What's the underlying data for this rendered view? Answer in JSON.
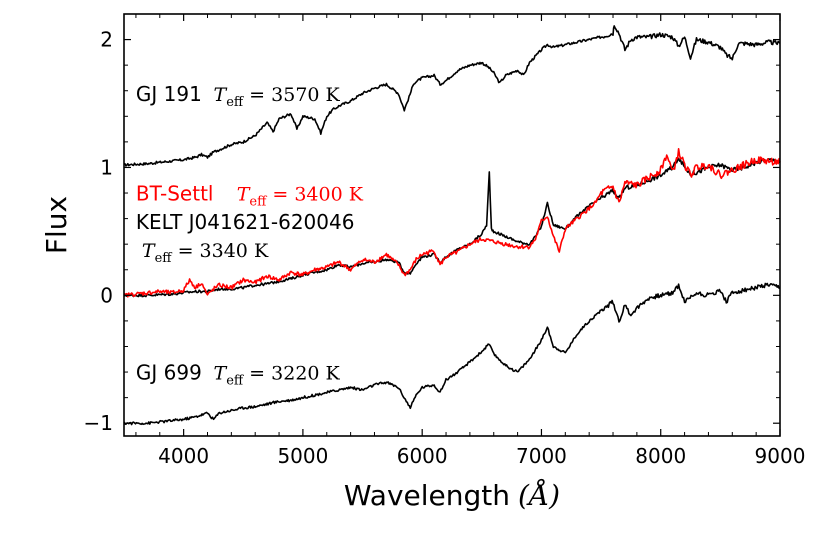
{
  "chart_data": {
    "type": "line",
    "title": "",
    "xlabel": "Wavelength",
    "xlabel_unit": "(Å)",
    "ylabel": "Flux",
    "xlim": [
      3500,
      9000
    ],
    "ylim": [
      -1.1,
      2.2
    ],
    "xticks": [
      4000,
      5000,
      6000,
      7000,
      8000,
      9000
    ],
    "yticks": [
      -1,
      0,
      1,
      2
    ],
    "xtick_labels": [
      "4000",
      "5000",
      "6000",
      "7000",
      "8000",
      "9000"
    ],
    "ytick_labels": [
      "−1",
      "0",
      "1",
      "2"
    ],
    "grid": false,
    "series": [
      {
        "name": "GJ 191",
        "color": "#000000",
        "x": [
          3500,
          3700,
          3900,
          4000,
          4100,
          4150,
          4200,
          4250,
          4300,
          4400,
          4500,
          4600,
          4700,
          4750,
          4800,
          4900,
          4950,
          5000,
          5100,
          5150,
          5200,
          5250,
          5300,
          5400,
          5500,
          5600,
          5700,
          5800,
          5850,
          5890,
          5930,
          6000,
          6100,
          6150,
          6200,
          6250,
          6300,
          6400,
          6500,
          6560,
          6600,
          6650,
          6700,
          6800,
          6850,
          6900,
          7000,
          7050,
          7100,
          7200,
          7300,
          7400,
          7500,
          7600,
          7610,
          7650,
          7700,
          7750,
          7800,
          7900,
          8000,
          8100,
          8150,
          8200,
          8250,
          8300,
          8400,
          8500,
          8550,
          8600,
          8650,
          8700,
          8800,
          8900,
          9000
        ],
        "y": [
          1.02,
          1.03,
          1.05,
          1.06,
          1.08,
          1.1,
          1.08,
          1.12,
          1.14,
          1.18,
          1.2,
          1.25,
          1.35,
          1.28,
          1.38,
          1.42,
          1.3,
          1.4,
          1.38,
          1.27,
          1.4,
          1.45,
          1.48,
          1.52,
          1.58,
          1.62,
          1.65,
          1.58,
          1.45,
          1.55,
          1.66,
          1.7,
          1.72,
          1.65,
          1.68,
          1.72,
          1.76,
          1.8,
          1.82,
          1.78,
          1.74,
          1.66,
          1.72,
          1.76,
          1.72,
          1.82,
          1.92,
          1.96,
          1.94,
          1.96,
          1.98,
          2.0,
          2.02,
          2.05,
          2.12,
          2.05,
          1.92,
          2.0,
          2.02,
          2.02,
          2.04,
          2.02,
          1.95,
          2.02,
          1.86,
          2.0,
          1.98,
          1.94,
          1.88,
          1.85,
          1.97,
          1.97,
          1.96,
          1.98,
          1.97
        ]
      },
      {
        "name": "KELT J041621-620046",
        "color": "#000000",
        "x": [
          3500,
          3700,
          3900,
          4000,
          4100,
          4200,
          4300,
          4400,
          4500,
          4600,
          4700,
          4800,
          4900,
          5000,
          5100,
          5200,
          5300,
          5400,
          5500,
          5600,
          5700,
          5800,
          5850,
          5900,
          5950,
          6000,
          6100,
          6150,
          6200,
          6300,
          6400,
          6500,
          6540,
          6563,
          6580,
          6600,
          6700,
          6800,
          6900,
          6950,
          7000,
          7050,
          7100,
          7200,
          7300,
          7400,
          7500,
          7600,
          7650,
          7700,
          7800,
          7900,
          8000,
          8100,
          8150,
          8200,
          8250,
          8300,
          8400,
          8500,
          8600,
          8700,
          8800,
          8900,
          9000
        ],
        "y": [
          0.0,
          0.0,
          0.01,
          0.02,
          0.03,
          0.03,
          0.05,
          0.05,
          0.06,
          0.08,
          0.09,
          0.11,
          0.13,
          0.16,
          0.18,
          0.2,
          0.24,
          0.22,
          0.25,
          0.26,
          0.28,
          0.26,
          0.18,
          0.17,
          0.25,
          0.3,
          0.32,
          0.26,
          0.3,
          0.36,
          0.4,
          0.48,
          0.55,
          0.96,
          0.52,
          0.5,
          0.46,
          0.42,
          0.4,
          0.46,
          0.54,
          0.72,
          0.55,
          0.52,
          0.62,
          0.7,
          0.76,
          0.82,
          0.75,
          0.84,
          0.86,
          0.9,
          0.94,
          1.0,
          1.08,
          1.0,
          0.95,
          0.96,
          1.0,
          1.02,
          0.98,
          1.0,
          1.04,
          1.06,
          1.05
        ]
      },
      {
        "name": "BT-Settl",
        "color": "#ff0000",
        "x": [
          3500,
          3700,
          3800,
          3900,
          4000,
          4050,
          4100,
          4150,
          4200,
          4250,
          4300,
          4400,
          4500,
          4600,
          4700,
          4800,
          4900,
          5000,
          5100,
          5200,
          5300,
          5400,
          5500,
          5600,
          5700,
          5800,
          5850,
          5900,
          5950,
          6000,
          6100,
          6150,
          6200,
          6300,
          6400,
          6500,
          6600,
          6700,
          6800,
          6900,
          6950,
          7000,
          7050,
          7100,
          7150,
          7200,
          7300,
          7400,
          7450,
          7500,
          7600,
          7650,
          7700,
          7800,
          7900,
          8000,
          8050,
          8100,
          8150,
          8200,
          8250,
          8300,
          8400,
          8500,
          8600,
          8700,
          8800,
          8900,
          9000
        ],
        "y": [
          0.0,
          0.02,
          0.03,
          0.02,
          0.04,
          0.12,
          0.06,
          0.1,
          0.0,
          0.05,
          0.08,
          0.06,
          0.12,
          0.1,
          0.15,
          0.12,
          0.18,
          0.16,
          0.2,
          0.22,
          0.26,
          0.2,
          0.28,
          0.26,
          0.32,
          0.24,
          0.16,
          0.2,
          0.28,
          0.32,
          0.35,
          0.24,
          0.3,
          0.34,
          0.4,
          0.44,
          0.42,
          0.4,
          0.38,
          0.38,
          0.44,
          0.58,
          0.62,
          0.46,
          0.34,
          0.52,
          0.6,
          0.68,
          0.72,
          0.8,
          0.85,
          0.72,
          0.88,
          0.86,
          0.92,
          0.98,
          1.1,
          0.96,
          1.12,
          1.02,
          0.94,
          1.0,
          1.02,
          0.94,
          0.98,
          1.02,
          1.06,
          1.05,
          1.04
        ]
      },
      {
        "name": "GJ 699",
        "color": "#000000",
        "x": [
          3500,
          3700,
          3900,
          4000,
          4100,
          4200,
          4250,
          4300,
          4400,
          4500,
          4600,
          4700,
          4800,
          4900,
          5000,
          5100,
          5200,
          5300,
          5400,
          5500,
          5600,
          5700,
          5800,
          5850,
          5900,
          5950,
          6000,
          6100,
          6150,
          6200,
          6300,
          6400,
          6500,
          6560,
          6600,
          6700,
          6800,
          6900,
          7000,
          7050,
          7100,
          7200,
          7300,
          7400,
          7500,
          7600,
          7650,
          7700,
          7750,
          7800,
          7900,
          8000,
          8100,
          8150,
          8200,
          8300,
          8400,
          8500,
          8550,
          8600,
          8700,
          8800,
          8900,
          9000
        ],
        "y": [
          -1.0,
          -1.0,
          -0.98,
          -0.97,
          -0.95,
          -0.92,
          -0.97,
          -0.92,
          -0.9,
          -0.88,
          -0.87,
          -0.85,
          -0.83,
          -0.82,
          -0.8,
          -0.78,
          -0.76,
          -0.74,
          -0.72,
          -0.74,
          -0.7,
          -0.68,
          -0.72,
          -0.8,
          -0.88,
          -0.78,
          -0.72,
          -0.7,
          -0.76,
          -0.66,
          -0.6,
          -0.52,
          -0.44,
          -0.38,
          -0.46,
          -0.55,
          -0.6,
          -0.5,
          -0.35,
          -0.25,
          -0.4,
          -0.45,
          -0.3,
          -0.2,
          -0.12,
          -0.05,
          -0.2,
          -0.08,
          -0.15,
          -0.1,
          -0.02,
          0.0,
          0.02,
          0.08,
          -0.05,
          0.02,
          0.0,
          0.04,
          -0.05,
          0.02,
          0.04,
          0.06,
          0.08,
          0.06
        ]
      }
    ],
    "annotations": [
      {
        "name": "GJ 191",
        "label": "GJ 191",
        "math": "T_eff = 3570 K",
        "x": 3600,
        "y": 1.52,
        "color": "#000000"
      },
      {
        "name": "BT-Settl",
        "label": "BT-Settl",
        "math": "T_eff = 3400 K",
        "x": 3600,
        "y": 0.74,
        "color": "#ff0000"
      },
      {
        "name": "KELT J041621-620046",
        "label": "KELT J041621-620046",
        "math": "T_eff = 3340 K",
        "x": 3600,
        "y": 0.52,
        "color": "#000000"
      },
      {
        "name": "GJ 699",
        "label": "GJ 699",
        "math": "T_eff = 3220 K",
        "x": 3600,
        "y": -0.66,
        "color": "#000000"
      }
    ]
  }
}
